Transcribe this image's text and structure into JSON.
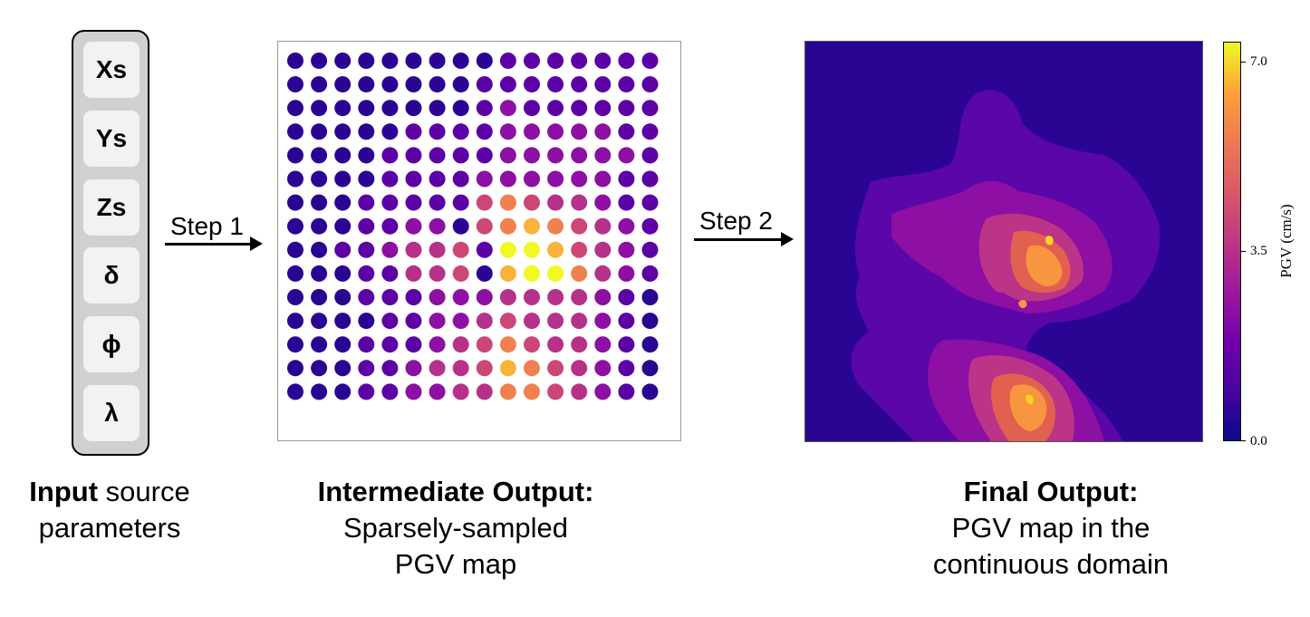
{
  "input_panel": {
    "params": [
      "Xs",
      "Ys",
      "Zs",
      "δ",
      "ϕ",
      "λ"
    ]
  },
  "steps": {
    "step1_label": "Step 1",
    "step2_label": "Step 2"
  },
  "captions": {
    "input_bold": "Input",
    "input_rest": " source",
    "input_line2": "parameters",
    "intermediate_bold": "Intermediate Output:",
    "intermediate_line2": "Sparsely-sampled",
    "intermediate_line3": "PGV map",
    "final_bold": "Final Output:",
    "final_line2": "PGV map in the",
    "final_line3": "continuous domain"
  },
  "colorbar": {
    "title": "PGV (cm/s)",
    "ticks": [
      "7.0",
      "3.5",
      "0.0"
    ],
    "tick_values": [
      7.0,
      3.5,
      0.0
    ],
    "min": 0.0,
    "max": 7.3
  },
  "colors": {
    "plasma_low": "#2a0593",
    "plasma_mid_low": "#8d0fa3",
    "plasma_mid": "#cc4778",
    "plasma_mid_high": "#f0804e",
    "plasma_high": "#f0f921"
  },
  "dot_grid": {
    "rows": 15,
    "cols": 16,
    "values": [
      [
        0,
        0,
        0,
        0,
        0,
        0,
        0,
        0,
        0,
        1,
        1,
        1,
        1,
        1,
        1,
        1
      ],
      [
        0,
        0,
        0,
        0,
        0,
        0,
        0,
        0,
        1,
        1,
        1,
        1,
        1,
        1,
        1,
        1
      ],
      [
        0,
        0,
        0,
        0,
        0,
        0,
        0,
        0,
        1,
        2,
        1,
        1,
        1,
        1,
        1,
        1
      ],
      [
        0,
        0,
        0,
        0,
        0,
        1,
        1,
        1,
        1,
        2,
        2,
        2,
        2,
        2,
        1,
        1
      ],
      [
        0,
        0,
        0,
        0,
        1,
        1,
        1,
        1,
        1,
        2,
        2,
        2,
        2,
        2,
        2,
        1
      ],
      [
        0,
        0,
        0,
        0,
        1,
        1,
        1,
        1,
        2,
        2,
        2,
        2,
        2,
        2,
        1,
        1
      ],
      [
        0,
        0,
        0,
        1,
        1,
        1,
        1,
        1,
        4,
        5,
        4,
        3,
        3,
        2,
        1,
        1
      ],
      [
        0,
        0,
        0,
        1,
        1,
        2,
        2,
        0,
        4,
        5,
        6,
        5,
        4,
        3,
        2,
        1
      ],
      [
        0,
        0,
        1,
        1,
        2,
        3,
        3,
        4,
        1,
        7,
        7,
        6,
        4,
        3,
        2,
        1
      ],
      [
        0,
        0,
        0,
        1,
        1,
        3,
        3,
        4,
        0,
        6,
        7,
        7,
        5,
        3,
        2,
        1
      ],
      [
        0,
        0,
        0,
        1,
        1,
        1,
        2,
        2,
        2,
        3,
        3,
        3,
        3,
        2,
        1,
        0
      ],
      [
        0,
        0,
        0,
        0,
        1,
        1,
        2,
        2,
        3,
        4,
        3,
        3,
        3,
        2,
        1,
        0
      ],
      [
        0,
        0,
        0,
        1,
        1,
        1,
        2,
        3,
        4,
        5,
        4,
        3,
        3,
        2,
        1,
        0
      ],
      [
        0,
        0,
        0,
        1,
        1,
        2,
        3,
        3,
        4,
        6,
        5,
        4,
        3,
        2,
        1,
        0
      ],
      [
        0,
        0,
        0,
        1,
        1,
        2,
        2,
        3,
        3,
        5,
        5,
        4,
        3,
        2,
        1,
        0
      ]
    ]
  }
}
